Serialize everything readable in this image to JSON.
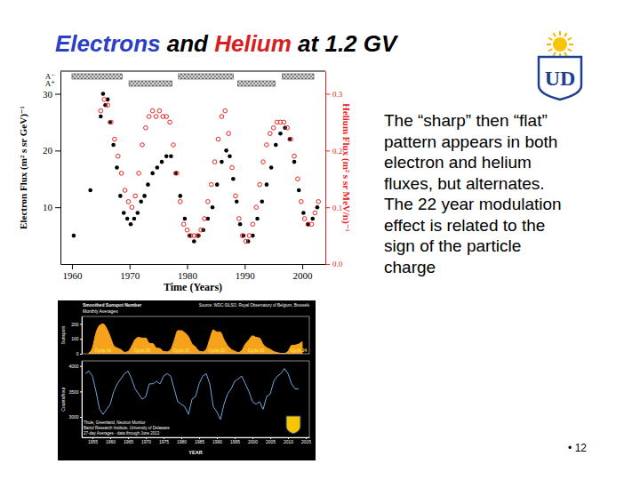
{
  "slide": {
    "title_parts": [
      {
        "text": "Electrons",
        "color": "#2b3fc4"
      },
      {
        "text": " and ",
        "color": "#000000"
      },
      {
        "text": "Helium",
        "color": "#d6201f"
      },
      {
        "text": " at 1.2 GV",
        "color": "#000000"
      }
    ],
    "bullets": [
      [
        "The “sharp” then “flat”",
        "pattern appears in both",
        "electron and helium",
        "fluxes, but alternates."
      ],
      [
        "The 22 year modulation",
        "effect is related to the",
        "sign of the particle",
        "charge"
      ]
    ],
    "logo_text": "UD",
    "page_number": "• 12"
  },
  "chart_data": [
    {
      "type": "scatter",
      "x_label": "Time (Years)",
      "y_label": "Electron Flux (m² s sr GeV)⁻¹",
      "y2_label": "Helium Flux (m² s sr MeV/n)⁻¹",
      "xlim": [
        1958,
        2004
      ],
      "xticks": [
        1960,
        1970,
        1980,
        1990,
        2000
      ],
      "ylim": [
        0,
        34
      ],
      "yticks": [
        10,
        20,
        30
      ],
      "y2lim": [
        0,
        0.34
      ],
      "y2ticks": [
        {
          "value": 0,
          "label": "0.0"
        },
        0.1,
        0.2,
        0.3
      ],
      "annotations": [
        {
          "text": "A⁻",
          "periods": [
            [
              1960,
              1968.7
            ],
            [
              1978.5,
              1988
            ],
            [
              1996.5,
              2002
            ]
          ]
        },
        {
          "text": "A⁺",
          "periods": [
            [
              1969.9,
              1977.4
            ],
            [
              1988.8,
              1995.3
            ]
          ]
        }
      ],
      "series": [
        {
          "color": "#000000",
          "marker": "circle",
          "x": [
            1960.3,
            1963.2,
            1965.0,
            1965.4,
            1965.8,
            1966.2,
            1966.6,
            1967.2,
            1967.8,
            1968.4,
            1969.0,
            1969.6,
            1970.2,
            1970.8,
            1971.4,
            1972.0,
            1972.6,
            1973.2,
            1974.0,
            1974.8,
            1975.6,
            1976.4,
            1977.2,
            1978.0,
            1978.8,
            1979.6,
            1980.4,
            1981.2,
            1982.0,
            1982.8,
            1983.6,
            1984.4,
            1985.2,
            1986.0,
            1986.8,
            1987.4,
            1988.0,
            1988.6,
            1989.2,
            1989.8,
            1990.6,
            1991.4,
            1992.2,
            1993.0,
            1993.8,
            1994.6,
            1995.4,
            1996.2,
            1997.0,
            1997.8,
            1998.6,
            1999.4,
            2000.2,
            2001.0,
            2001.8,
            2002.6
          ],
          "values": [
            5,
            13,
            26,
            30,
            28,
            29,
            25,
            21,
            17,
            12,
            9,
            8,
            7,
            8,
            9,
            11,
            12,
            14,
            16,
            17,
            18,
            19,
            19,
            16,
            12,
            8,
            5,
            4,
            5,
            6,
            8,
            10,
            14,
            18,
            20,
            19,
            15,
            11,
            7,
            5,
            4,
            5,
            8,
            11,
            14,
            17,
            21,
            23,
            24,
            22,
            18,
            13,
            9,
            7,
            8,
            10
          ]
        },
        {
          "color": "#e8221e",
          "marker": "circle-open",
          "axis": "y2",
          "x": [
            1965.0,
            1965.6,
            1966.2,
            1966.8,
            1967.4,
            1968.0,
            1968.6,
            1969.2,
            1969.8,
            1970.4,
            1971.0,
            1971.6,
            1972.2,
            1972.8,
            1973.4,
            1974.0,
            1974.6,
            1975.2,
            1975.8,
            1976.4,
            1977.0,
            1977.6,
            1978.2,
            1978.8,
            1979.4,
            1980.0,
            1980.6,
            1981.2,
            1981.8,
            1982.4,
            1983.0,
            1983.6,
            1984.2,
            1984.8,
            1985.4,
            1986.0,
            1986.6,
            1987.2,
            1987.8,
            1988.4,
            1989.0,
            1989.6,
            1990.2,
            1990.8,
            1991.4,
            1992.0,
            1992.6,
            1993.2,
            1993.8,
            1994.4,
            1995.0,
            1995.6,
            1996.2,
            1996.8,
            1997.4,
            1998.0,
            1998.6,
            1999.2,
            1999.8,
            2000.4,
            2001.0,
            2001.6,
            2002.2,
            2002.8
          ],
          "values": [
            0.27,
            0.29,
            0.28,
            0.25,
            0.22,
            0.19,
            0.16,
            0.13,
            0.11,
            0.1,
            0.12,
            0.16,
            0.21,
            0.24,
            0.26,
            0.27,
            0.26,
            0.27,
            0.26,
            0.26,
            0.25,
            0.21,
            0.16,
            0.11,
            0.07,
            0.06,
            0.05,
            0.05,
            0.05,
            0.06,
            0.08,
            0.11,
            0.14,
            0.18,
            0.22,
            0.26,
            0.27,
            0.23,
            0.17,
            0.12,
            0.08,
            0.05,
            0.04,
            0.05,
            0.07,
            0.1,
            0.14,
            0.18,
            0.21,
            0.23,
            0.24,
            0.25,
            0.25,
            0.25,
            0.24,
            0.22,
            0.19,
            0.15,
            0.11,
            0.08,
            0.07,
            0.07,
            0.09,
            0.11
          ]
        }
      ]
    },
    {
      "type": "area",
      "title": "Smoothed Sunspot Number",
      "subtitle": "Monthly Averages",
      "y_label": "Sunspots",
      "tick_labels": "y",
      "xlim": [
        1952,
        2016
      ],
      "ylim": [
        0,
        250
      ],
      "yticks": [
        0,
        100,
        200
      ],
      "annotations": [
        {
          "text": "Source: WDC-SILSO, Royal Observatory of Belgium, Brussels"
        },
        {
          "text": "Cycle 19",
          "x": 1958
        },
        {
          "text": "Cycle 20",
          "x": 1969
        },
        {
          "text": "Cycle 21",
          "x": 1980
        },
        {
          "text": "Cycle 22",
          "x": 1990
        },
        {
          "text": "Cycle 23",
          "x": 2001
        },
        {
          "text": "Cycle 24",
          "x": 2013
        }
      ],
      "series": [
        {
          "color": "#f7a21b",
          "x": [
            1954,
            1955,
            1956,
            1957,
            1958,
            1959,
            1960,
            1961,
            1962,
            1963,
            1964,
            1965,
            1966,
            1967,
            1968,
            1969,
            1970,
            1971,
            1972,
            1973,
            1974,
            1975,
            1976,
            1977,
            1978,
            1979,
            1980,
            1981,
            1982,
            1983,
            1984,
            1985,
            1986,
            1987,
            1988,
            1989,
            1990,
            1991,
            1992,
            1993,
            1994,
            1995,
            1996,
            1997,
            1998,
            1999,
            2000,
            2001,
            2002,
            2003,
            2004,
            2005,
            2006,
            2007,
            2008,
            2009,
            2010,
            2011,
            2012,
            2013,
            2014
          ],
          "values": [
            5,
            40,
            140,
            190,
            200,
            170,
            115,
            55,
            38,
            28,
            10,
            15,
            50,
            95,
            110,
            105,
            105,
            70,
            68,
            38,
            35,
            15,
            13,
            28,
            90,
            155,
            155,
            140,
            115,
            67,
            46,
            18,
            13,
            30,
            100,
            160,
            145,
            145,
            95,
            55,
            30,
            18,
            9,
            22,
            65,
            93,
            120,
            110,
            105,
            64,
            41,
            30,
            15,
            8,
            3,
            3,
            16,
            56,
            58,
            65,
            80
          ]
        }
      ]
    },
    {
      "type": "line",
      "title": "Thule, Greenland, Neutron Monitor",
      "subtitle": "Bartol Research Institute, University of Delaware",
      "x_label": "YEAR",
      "y_label": "Counts/hour",
      "xlim": [
        1952,
        2016
      ],
      "xticks": [
        1955,
        1960,
        1965,
        1970,
        1975,
        1980,
        1985,
        1990,
        1995,
        2000,
        2005,
        2010,
        2015
      ],
      "ylim": [
        2600,
        4100
      ],
      "yticks": [
        3000,
        3500,
        4000
      ],
      "annotations": [
        {
          "text": "27-day Averages - data through June 2013"
        }
      ],
      "series": [
        {
          "color": "#6fa8dc",
          "x": [
            1953,
            1954,
            1955,
            1956,
            1957,
            1958,
            1959,
            1960,
            1961,
            1962,
            1963,
            1964,
            1965,
            1966,
            1967,
            1968,
            1969,
            1970,
            1971,
            1972,
            1973,
            1974,
            1975,
            1976,
            1977,
            1978,
            1979,
            1980,
            1981,
            1982,
            1983,
            1984,
            1985,
            1986,
            1987,
            1988,
            1989,
            1990,
            1991,
            1992,
            1993,
            1994,
            1995,
            1996,
            1997,
            1998,
            1999,
            2000,
            2001,
            2002,
            2003,
            2004,
            2005,
            2006,
            2007,
            2008,
            2009,
            2010,
            2011,
            2012,
            2013
          ],
          "values": [
            3850,
            3900,
            3800,
            3500,
            3150,
            3050,
            3150,
            3250,
            3500,
            3650,
            3750,
            3850,
            3900,
            3750,
            3550,
            3450,
            3350,
            3400,
            3650,
            3650,
            3700,
            3650,
            3800,
            3850,
            3800,
            3550,
            3300,
            3250,
            3200,
            3050,
            3350,
            3400,
            3650,
            3800,
            3850,
            3650,
            3200,
            3100,
            2950,
            3250,
            3450,
            3550,
            3700,
            3750,
            3800,
            3650,
            3500,
            3300,
            3250,
            3300,
            3150,
            3400,
            3450,
            3700,
            3800,
            3850,
            3950,
            3850,
            3650,
            3550,
            3550
          ]
        }
      ]
    }
  ]
}
